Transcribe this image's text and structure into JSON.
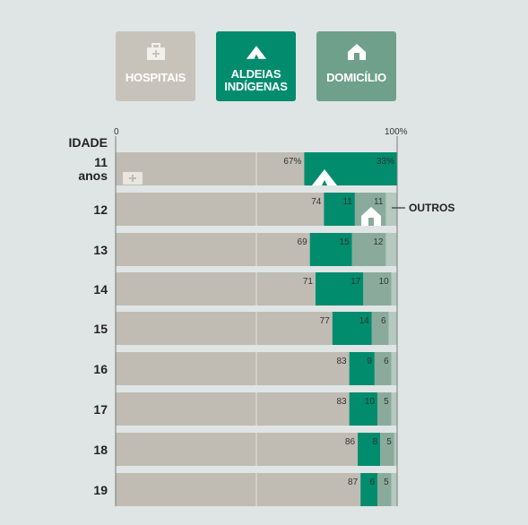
{
  "legend_buttons": [
    {
      "label": "HOSPITAIS",
      "icon": "hospital-icon",
      "color": "#c7c3bb"
    },
    {
      "label": "ALDEIAS\nINDÍGENAS",
      "icon": "tent-icon",
      "color": "#008c6d"
    },
    {
      "label": "DOMICÍLIO",
      "icon": "house-icon",
      "color": "#6fa08c"
    }
  ],
  "chart_data": {
    "type": "bar",
    "orientation": "horizontal",
    "stacked": true,
    "ylabel": "IDADE",
    "xlim": [
      0,
      100
    ],
    "x_tick_labels": [
      "0",
      "100%"
    ],
    "categories": [
      "11\nanos",
      "12",
      "13",
      "14",
      "15",
      "16",
      "17",
      "18",
      "19"
    ],
    "series": [
      {
        "name": "HOSPITAIS",
        "color": "#c0bcb4",
        "values": [
          67,
          74,
          69,
          71,
          77,
          83,
          83,
          86,
          87
        ]
      },
      {
        "name": "ALDEIAS INDÍGENAS",
        "color": "#008c6d",
        "values": [
          33,
          11,
          15,
          17,
          14,
          9,
          10,
          8,
          6
        ]
      },
      {
        "name": "DOMICÍLIO",
        "color": "#8aab9c",
        "values": [
          0,
          11,
          12,
          10,
          6,
          6,
          5,
          5,
          5
        ]
      },
      {
        "name": "OUTROS",
        "color": "#b6c9c1",
        "values": [
          0,
          4,
          4,
          2,
          3,
          2,
          2,
          1,
          2
        ]
      }
    ],
    "value_labels": [
      [
        "67%",
        "33%",
        "",
        ""
      ],
      [
        "74",
        "11",
        "11",
        ""
      ],
      [
        "69",
        "15",
        "12",
        ""
      ],
      [
        "71",
        "17",
        "10",
        ""
      ],
      [
        "77",
        "14",
        "6",
        ""
      ],
      [
        "83",
        "9",
        "6",
        ""
      ],
      [
        "83",
        "10",
        "5",
        ""
      ],
      [
        "86",
        "8",
        "5",
        ""
      ],
      [
        "87",
        "6",
        "5",
        ""
      ]
    ],
    "annotations": [
      "OUTROS"
    ],
    "grid": true
  }
}
